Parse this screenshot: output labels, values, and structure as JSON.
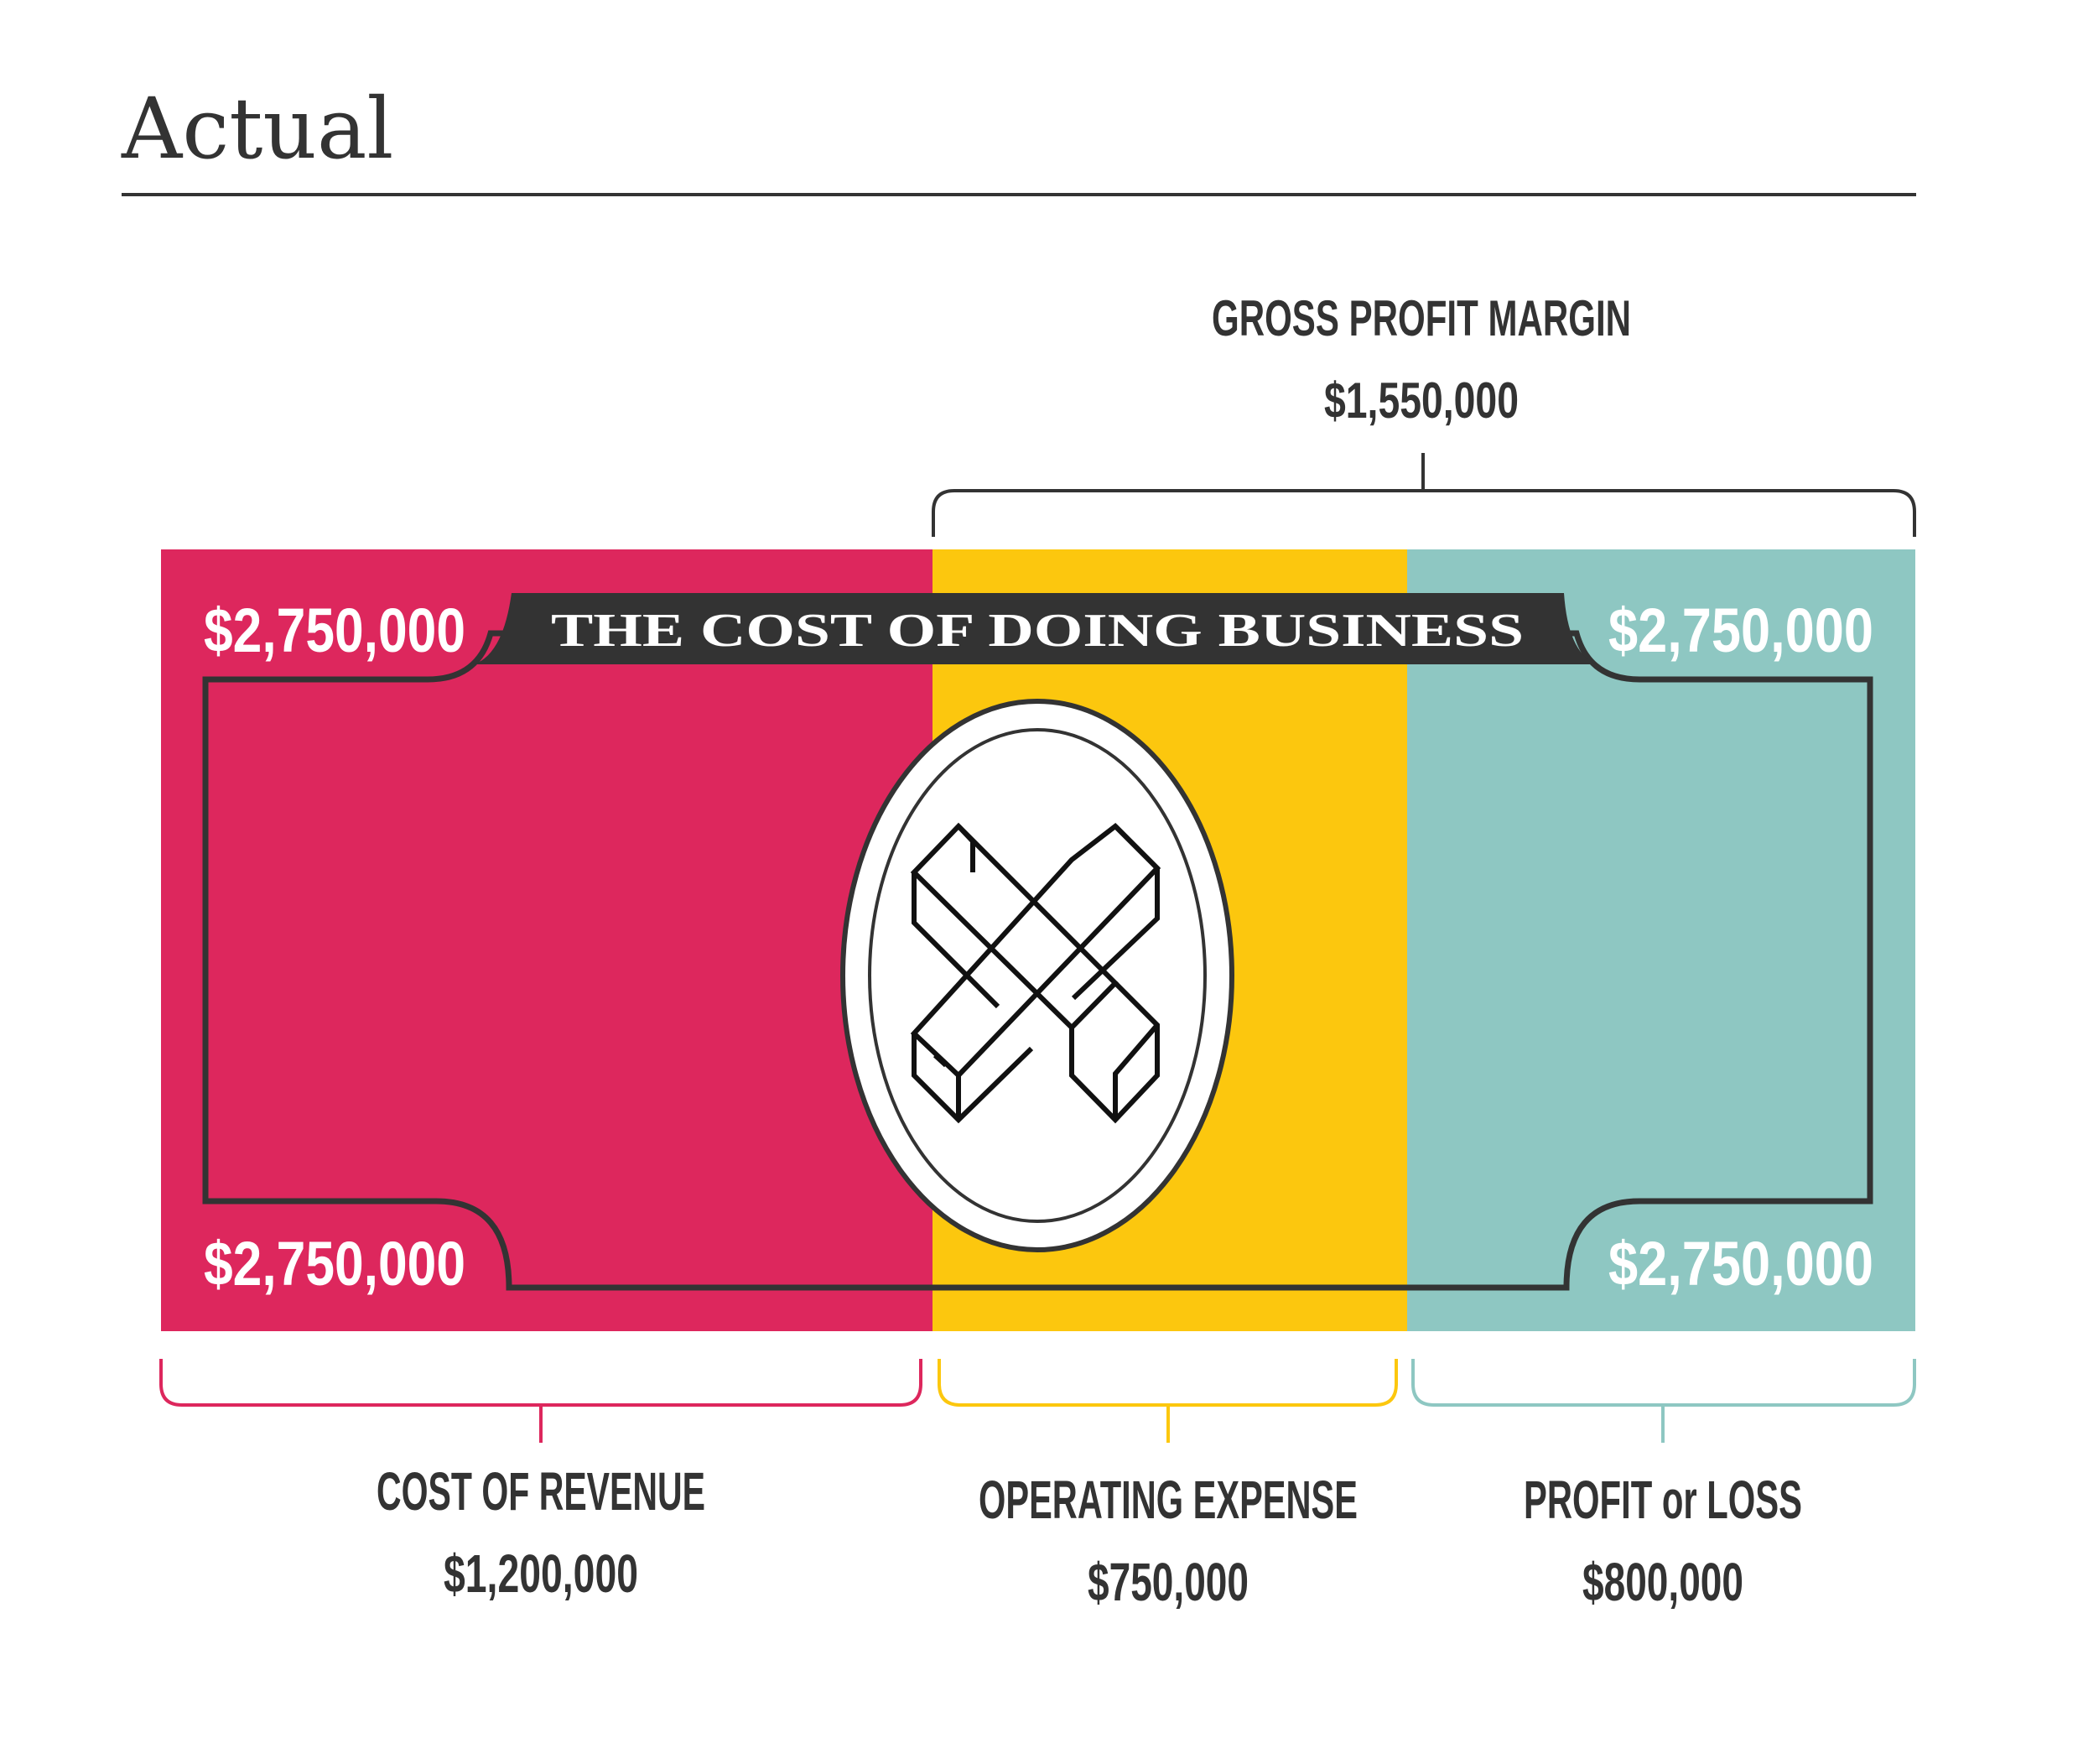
{
  "heading": {
    "title": "Actual"
  },
  "bill": {
    "banner_text": "THE COST OF DOING BUSINESS",
    "corner_amount": "$2,750,000",
    "segments": [
      {
        "key": "cost_of_revenue",
        "color": "#DD275D"
      },
      {
        "key": "operating_expense",
        "color": "#FCC70E"
      },
      {
        "key": "profit_or_loss",
        "color": "#8EC7C2"
      }
    ],
    "emblem_icon": "x-cross-icon"
  },
  "top_bracket": {
    "label": "GROSS PROFIT MARGIN",
    "value": "$1,550,000",
    "color": "#333333"
  },
  "bottom_brackets": [
    {
      "label": "COST OF REVENUE",
      "value": "$1,200,000",
      "color": "#DD275D"
    },
    {
      "label": "OPERATING EXPENSE",
      "value": "$750,000",
      "color": "#FCC70E"
    },
    {
      "label": "PROFIT or LOSS",
      "value": "$800,000",
      "color": "#8EC7C2"
    }
  ],
  "colors": {
    "text": "#333333",
    "dark": "#333333",
    "white": "#ffffff"
  }
}
